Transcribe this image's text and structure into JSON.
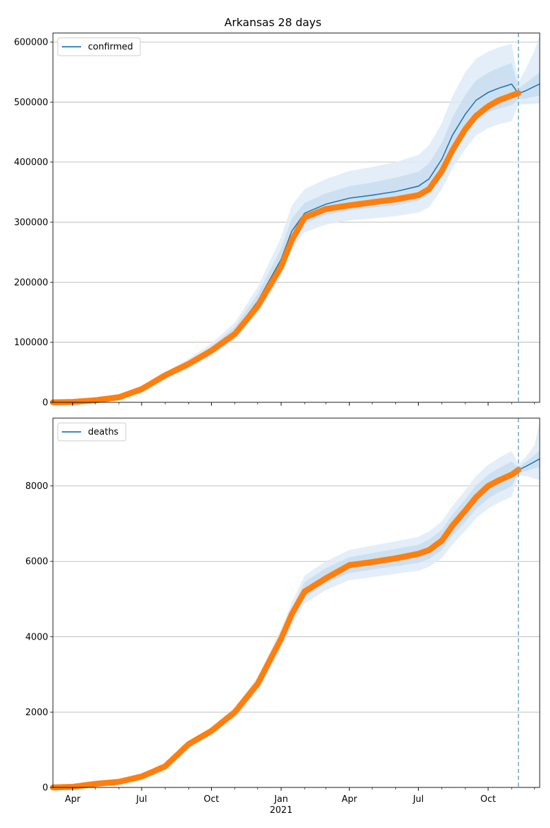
{
  "figure": {
    "title": "Arkansas 28 days"
  },
  "chart_data": [
    {
      "type": "line",
      "name": "confirmed-panel",
      "legend": {
        "label": "confirmed",
        "placement": "upper-left"
      },
      "ylim": [
        0,
        615000
      ],
      "yticks": [
        0,
        100000,
        200000,
        300000,
        400000,
        500000,
        600000
      ],
      "grid": "y",
      "forecast_start": "2021-11-10",
      "x_range": [
        "2020-03-06",
        "2021-12-08"
      ],
      "observed": {
        "x": [
          "2020-03-06",
          "2020-04-01",
          "2020-05-01",
          "2020-06-01",
          "2020-07-01",
          "2020-08-01",
          "2020-09-01",
          "2020-10-01",
          "2020-11-01",
          "2020-12-01",
          "2021-01-01",
          "2021-01-15",
          "2021-02-01",
          "2021-03-01",
          "2021-04-01",
          "2021-05-01",
          "2021-06-01",
          "2021-07-01",
          "2021-07-15",
          "2021-08-01",
          "2021-08-15",
          "2021-09-01",
          "2021-09-15",
          "2021-10-01",
          "2021-10-15",
          "2021-11-01",
          "2021-11-10"
        ],
        "y": [
          0,
          600,
          3500,
          8500,
          22000,
          45000,
          64000,
          86000,
          114000,
          160000,
          226000,
          270000,
          308000,
          322000,
          328000,
          333000,
          338000,
          345000,
          355000,
          385000,
          420000,
          455000,
          477000,
          493000,
          503000,
          511000,
          515000
        ]
      },
      "model": {
        "x": [
          "2020-03-06",
          "2020-04-01",
          "2020-05-01",
          "2020-06-01",
          "2020-07-01",
          "2020-08-01",
          "2020-09-01",
          "2020-10-01",
          "2020-11-01",
          "2020-12-01",
          "2021-01-01",
          "2021-01-15",
          "2021-02-01",
          "2021-03-01",
          "2021-04-01",
          "2021-05-01",
          "2021-06-01",
          "2021-07-01",
          "2021-07-15",
          "2021-08-01",
          "2021-08-15",
          "2021-09-01",
          "2021-09-15",
          "2021-10-01",
          "2021-10-15",
          "2021-11-01",
          "2021-11-10",
          "2021-11-20",
          "2021-12-01",
          "2021-12-08"
        ],
        "y": [
          0,
          600,
          3500,
          8500,
          22000,
          45000,
          65000,
          88000,
          118000,
          168000,
          238000,
          285000,
          315000,
          330000,
          340000,
          345000,
          351000,
          360000,
          372000,
          405000,
          445000,
          480000,
          503000,
          516000,
          523000,
          530000,
          514000,
          519000,
          526000,
          530000
        ],
        "band_inner": [
          [
            0,
            0
          ],
          [
            550,
            650
          ],
          [
            3300,
            3700
          ],
          [
            8200,
            8800
          ],
          [
            21000,
            23000
          ],
          [
            43000,
            47000
          ],
          [
            61000,
            69000
          ],
          [
            84000,
            93000
          ],
          [
            111000,
            126000
          ],
          [
            158000,
            180000
          ],
          [
            222000,
            256000
          ],
          [
            268000,
            306000
          ],
          [
            298000,
            332000
          ],
          [
            312000,
            348000
          ],
          [
            320000,
            360000
          ],
          [
            324000,
            366000
          ],
          [
            328000,
            374000
          ],
          [
            336000,
            384000
          ],
          [
            346000,
            398000
          ],
          [
            378000,
            432000
          ],
          [
            415000,
            475000
          ],
          [
            448000,
            512000
          ],
          [
            470000,
            536000
          ],
          [
            483000,
            549000
          ],
          [
            489000,
            557000
          ],
          [
            495000,
            565000
          ],
          [
            505000,
            523000
          ],
          [
            506000,
            532000
          ],
          [
            509000,
            543000
          ],
          [
            511000,
            549000
          ]
        ],
        "band_outer": [
          [
            0,
            0
          ],
          [
            500,
            700
          ],
          [
            3000,
            4000
          ],
          [
            7700,
            9300
          ],
          [
            20000,
            24500
          ],
          [
            40000,
            50000
          ],
          [
            57000,
            73000
          ],
          [
            79000,
            98000
          ],
          [
            105000,
            133000
          ],
          [
            150000,
            192000
          ],
          [
            210000,
            275000
          ],
          [
            255000,
            328000
          ],
          [
            283000,
            355000
          ],
          [
            296000,
            372000
          ],
          [
            303000,
            385000
          ],
          [
            306000,
            392000
          ],
          [
            310000,
            400000
          ],
          [
            316000,
            412000
          ],
          [
            325000,
            428000
          ],
          [
            355000,
            465000
          ],
          [
            390000,
            510000
          ],
          [
            422000,
            550000
          ],
          [
            444000,
            572000
          ],
          [
            457000,
            584000
          ],
          [
            463000,
            591000
          ],
          [
            468000,
            597000
          ],
          [
            496000,
            533000
          ],
          [
            496000,
            556000
          ],
          [
            497000,
            585000
          ],
          [
            498000,
            612000
          ]
        ]
      }
    },
    {
      "type": "line",
      "name": "deaths-panel",
      "legend": {
        "label": "deaths",
        "placement": "upper-left"
      },
      "ylim": [
        0,
        9800
      ],
      "yticks": [
        0,
        2000,
        4000,
        6000,
        8000
      ],
      "grid": "y",
      "forecast_start": "2021-11-10",
      "x_range": [
        "2020-03-06",
        "2021-12-08"
      ],
      "xticks": [
        {
          "date": "2020-04-01",
          "label": "Apr"
        },
        {
          "date": "2020-07-01",
          "label": "Jul"
        },
        {
          "date": "2020-10-01",
          "label": "Oct"
        },
        {
          "date": "2021-01-01",
          "label": "Jan",
          "sublabel": "2021"
        },
        {
          "date": "2021-04-01",
          "label": "Apr"
        },
        {
          "date": "2021-07-01",
          "label": "Jul"
        },
        {
          "date": "2021-10-01",
          "label": "Oct"
        }
      ],
      "observed": {
        "x": [
          "2020-03-06",
          "2020-04-01",
          "2020-05-01",
          "2020-06-01",
          "2020-07-01",
          "2020-08-01",
          "2020-09-01",
          "2020-10-01",
          "2020-11-01",
          "2020-12-01",
          "2021-01-01",
          "2021-01-15",
          "2021-02-01",
          "2021-03-01",
          "2021-04-01",
          "2021-05-01",
          "2021-06-01",
          "2021-07-01",
          "2021-07-15",
          "2021-08-01",
          "2021-08-15",
          "2021-09-01",
          "2021-09-15",
          "2021-10-01",
          "2021-10-15",
          "2021-11-01",
          "2021-11-10"
        ],
        "y": [
          0,
          15,
          95,
          150,
          290,
          560,
          1150,
          1500,
          2000,
          2750,
          3950,
          4600,
          5200,
          5550,
          5900,
          5980,
          6080,
          6200,
          6300,
          6550,
          6950,
          7350,
          7700,
          8000,
          8150,
          8300,
          8430
        ]
      },
      "model": {
        "x": [
          "2020-03-06",
          "2020-04-01",
          "2020-05-01",
          "2020-06-01",
          "2020-07-01",
          "2020-08-01",
          "2020-09-01",
          "2020-10-01",
          "2020-11-01",
          "2020-12-01",
          "2021-01-01",
          "2021-01-15",
          "2021-02-01",
          "2021-03-01",
          "2021-04-01",
          "2021-05-01",
          "2021-06-01",
          "2021-07-01",
          "2021-07-15",
          "2021-08-01",
          "2021-08-15",
          "2021-09-01",
          "2021-09-15",
          "2021-10-01",
          "2021-10-15",
          "2021-11-01",
          "2021-11-10",
          "2021-11-20",
          "2021-12-01",
          "2021-12-08"
        ],
        "y": [
          0,
          15,
          95,
          150,
          290,
          560,
          1150,
          1500,
          2000,
          2750,
          3950,
          4600,
          5250,
          5620,
          5900,
          6000,
          6100,
          6200,
          6320,
          6570,
          6960,
          7350,
          7700,
          7980,
          8150,
          8320,
          8420,
          8520,
          8640,
          8720
        ],
        "band_inner": [
          [
            0,
            0
          ],
          [
            12,
            18
          ],
          [
            90,
            100
          ],
          [
            140,
            160
          ],
          [
            275,
            305
          ],
          [
            535,
            585
          ],
          [
            1110,
            1190
          ],
          [
            1450,
            1550
          ],
          [
            1935,
            2065
          ],
          [
            2660,
            2840
          ],
          [
            3820,
            4080
          ],
          [
            4440,
            4760
          ],
          [
            5050,
            5450
          ],
          [
            5420,
            5820
          ],
          [
            5690,
            6110
          ],
          [
            5780,
            6220
          ],
          [
            5870,
            6330
          ],
          [
            5960,
            6440
          ],
          [
            6060,
            6580
          ],
          [
            6300,
            6840
          ],
          [
            6680,
            7240
          ],
          [
            7050,
            7650
          ],
          [
            7390,
            8010
          ],
          [
            7660,
            8300
          ],
          [
            7830,
            8470
          ],
          [
            7990,
            8650
          ],
          [
            8350,
            8490
          ],
          [
            8400,
            8640
          ],
          [
            8460,
            8820
          ],
          [
            8500,
            8940
          ]
        ],
        "band_outer": [
          [
            0,
            0
          ],
          [
            10,
            20
          ],
          [
            85,
            105
          ],
          [
            130,
            170
          ],
          [
            260,
            320
          ],
          [
            510,
            610
          ],
          [
            1070,
            1230
          ],
          [
            1400,
            1600
          ],
          [
            1870,
            2130
          ],
          [
            2570,
            2930
          ],
          [
            3690,
            4210
          ],
          [
            4290,
            4910
          ],
          [
            4880,
            5620
          ],
          [
            5240,
            6000
          ],
          [
            5500,
            6300
          ],
          [
            5580,
            6420
          ],
          [
            5670,
            6530
          ],
          [
            5750,
            6650
          ],
          [
            5850,
            6790
          ],
          [
            6080,
            7060
          ],
          [
            6450,
            7470
          ],
          [
            6810,
            7890
          ],
          [
            7140,
            8260
          ],
          [
            7400,
            8560
          ],
          [
            7560,
            8740
          ],
          [
            7710,
            8930
          ],
          [
            8280,
            8560
          ],
          [
            8260,
            8780
          ],
          [
            8200,
            9080
          ],
          [
            8150,
            9700
          ]
        ]
      }
    }
  ],
  "colors": {
    "model_line": "#1f77b4",
    "observed_points": "#ff7f0e",
    "band_inner": "#c6dbef",
    "band_outer": "#deebf7",
    "forecast_line": "#7aaac8",
    "grid": "#b0b0b0"
  }
}
